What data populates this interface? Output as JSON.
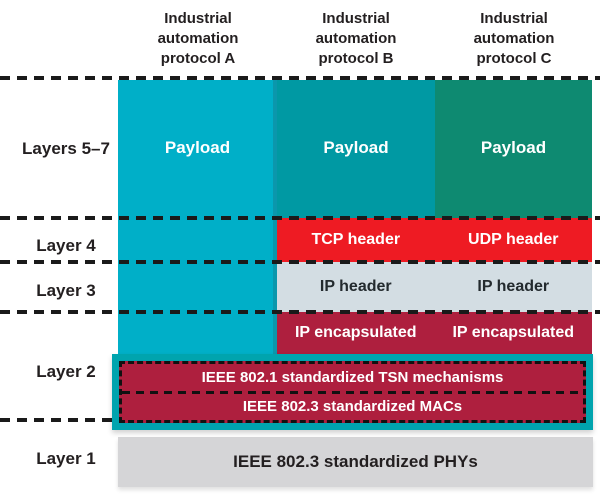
{
  "columns": [
    {
      "header_lines": [
        "Industrial",
        "automation",
        "protocol A"
      ],
      "payload": "Payload"
    },
    {
      "header_lines": [
        "Industrial",
        "automation",
        "protocol B"
      ],
      "payload": "Payload",
      "layer4": "TCP header",
      "layer3": "IP header",
      "encap": "IP encapsulated"
    },
    {
      "header_lines": [
        "Industrial",
        "automation",
        "protocol C"
      ],
      "payload": "Payload",
      "layer4": "UDP header",
      "layer3": "IP header",
      "encap": "IP encapsulated"
    }
  ],
  "row_labels": {
    "layers57": "Layers 5–7",
    "layer4": "Layer 4",
    "layer3": "Layer 3",
    "layer2": "Layer 2",
    "layer1": "Layer 1"
  },
  "layer2_box": {
    "tsn": "IEEE 802.1 standardized TSN mechanisms",
    "macs": "IEEE 802.3 standardized MACs"
  },
  "layer1": {
    "phys": "IEEE 802.3 standardized PHYs"
  },
  "colors": {
    "protocol_a_teal": "#00AFC8",
    "protocol_b_teal": "#0099A3",
    "protocol_c_green": "#0E8A71",
    "transport_red": "#EE1B23",
    "ip_header_gray": "#D3DDE3",
    "encapsulated_crimson": "#AE1F3E",
    "layer2_border_teal": "#00A4AE",
    "phy_gray": "#D5D5D7",
    "dash_black": "#1A1A1A",
    "text_dark": "#231F20"
  }
}
